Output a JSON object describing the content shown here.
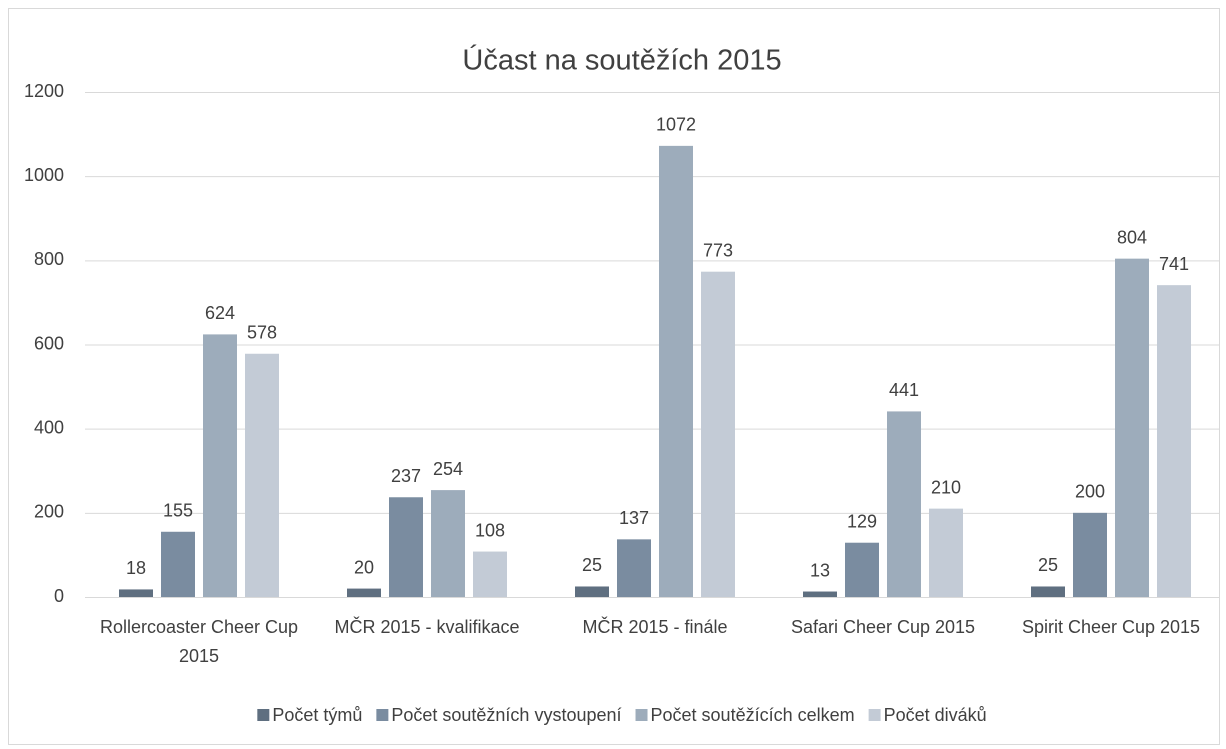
{
  "chart_data": {
    "type": "bar",
    "title": "Účast na soutěžích 2015",
    "categories": [
      "Rollercoaster Cheer Cup 2015",
      "MČR 2015 - kvalifikace",
      "MČR 2015 - finále",
      "Safari Cheer Cup 2015",
      "Spirit Cheer Cup 2015"
    ],
    "series": [
      {
        "name": "Počet týmů",
        "color": "#5f6f80",
        "values": [
          18,
          20,
          25,
          13,
          25
        ]
      },
      {
        "name": "Počet soutěžních vystoupení",
        "color": "#7a8ca0",
        "values": [
          155,
          237,
          137,
          129,
          200
        ]
      },
      {
        "name": "Počet soutěžících celkem",
        "color": "#9dacbb",
        "values": [
          624,
          254,
          1072,
          441,
          804
        ]
      },
      {
        "name": "Počet diváků",
        "color": "#c3cbd6",
        "values": [
          578,
          108,
          773,
          210,
          741
        ]
      }
    ],
    "ylim": [
      0,
      1200
    ],
    "yticks": [
      0,
      200,
      400,
      600,
      800,
      1000,
      1200
    ],
    "grid": true,
    "legend": "bottom"
  }
}
